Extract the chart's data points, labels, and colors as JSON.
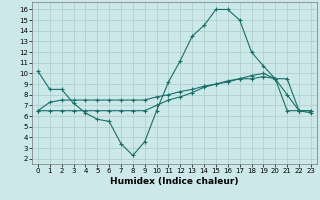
{
  "xlabel": "Humidex (Indice chaleur)",
  "background_color": "#cce8e8",
  "grid_color": "#aacccc",
  "line_color": "#1a6e6a",
  "x_ticks": [
    0,
    1,
    2,
    3,
    4,
    5,
    6,
    7,
    8,
    9,
    10,
    11,
    12,
    13,
    14,
    15,
    16,
    17,
    18,
    19,
    20,
    21,
    22,
    23
  ],
  "y_ticks": [
    2,
    3,
    4,
    5,
    6,
    7,
    8,
    9,
    10,
    11,
    12,
    13,
    14,
    15,
    16
  ],
  "xlim": [
    -0.5,
    23.5
  ],
  "ylim": [
    1.5,
    16.7
  ],
  "series1_x": [
    0,
    1,
    2,
    3,
    4,
    5,
    6,
    7,
    8,
    9,
    10,
    11,
    12,
    13,
    14,
    15,
    16,
    17,
    18,
    19,
    20,
    21,
    22,
    23
  ],
  "series1_y": [
    10.2,
    8.5,
    8.5,
    7.2,
    6.3,
    5.7,
    5.5,
    3.4,
    2.3,
    3.6,
    6.5,
    9.2,
    11.2,
    13.5,
    14.5,
    16.0,
    16.0,
    15.0,
    12.0,
    10.7,
    9.5,
    8.0,
    6.5,
    6.3
  ],
  "series2_x": [
    0,
    1,
    2,
    3,
    4,
    5,
    6,
    7,
    8,
    9,
    10,
    11,
    12,
    13,
    14,
    15,
    16,
    17,
    18,
    19,
    20,
    21,
    22,
    23
  ],
  "series2_y": [
    6.5,
    6.5,
    6.5,
    6.5,
    6.5,
    6.5,
    6.5,
    6.5,
    6.5,
    6.5,
    7.0,
    7.5,
    7.8,
    8.2,
    8.7,
    9.0,
    9.3,
    9.5,
    9.8,
    10.0,
    9.5,
    9.5,
    6.5,
    6.5
  ],
  "series3_x": [
    0,
    1,
    2,
    3,
    4,
    5,
    6,
    7,
    8,
    9,
    10,
    11,
    12,
    13,
    14,
    15,
    16,
    17,
    18,
    19,
    20,
    21,
    22,
    23
  ],
  "series3_y": [
    6.5,
    7.3,
    7.5,
    7.5,
    7.5,
    7.5,
    7.5,
    7.5,
    7.5,
    7.5,
    7.8,
    8.0,
    8.3,
    8.5,
    8.8,
    9.0,
    9.2,
    9.5,
    9.5,
    9.7,
    9.5,
    6.5,
    6.5,
    6.5
  ],
  "tick_labelsize": 5,
  "xlabel_fontsize": 6.5
}
